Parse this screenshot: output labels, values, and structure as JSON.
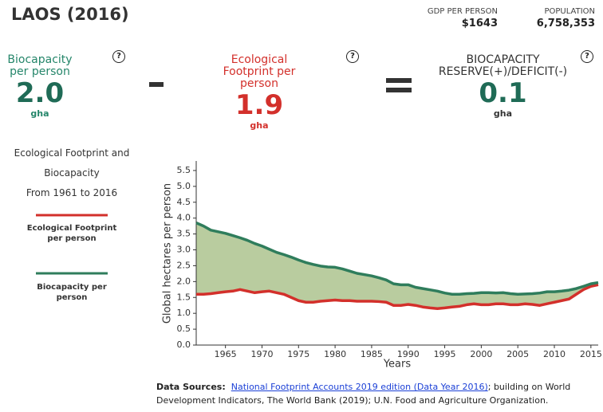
{
  "header": {
    "title": "LAOS (2016)",
    "gdp": {
      "label": "GDP PER PERSON",
      "value": "$1643"
    },
    "population": {
      "label": "POPULATION",
      "value": "6,758,353"
    },
    "help": "?",
    "panels": [
      {
        "label": "Biocapacity per person",
        "value": "2.0",
        "unit": "gha"
      },
      {
        "label": "Ecological Footprint per person",
        "value": "1.9",
        "unit": "gha"
      },
      {
        "label": "BIOCAPACITY RESERVE(+)/DEFICIT(-)",
        "value": "0.1",
        "unit": "gha"
      }
    ]
  },
  "sidebar": {
    "lines": [
      "Ecological Footprint and",
      "Biocapacity",
      "From 1961 to 2016"
    ]
  },
  "chart_data": {
    "type": "line",
    "x": [
      1961,
      1962,
      1963,
      1964,
      1965,
      1966,
      1967,
      1968,
      1969,
      1970,
      1971,
      1972,
      1973,
      1974,
      1975,
      1976,
      1977,
      1978,
      1979,
      1980,
      1981,
      1982,
      1983,
      1984,
      1985,
      1986,
      1987,
      1988,
      1989,
      1990,
      1991,
      1992,
      1993,
      1994,
      1995,
      1996,
      1997,
      1998,
      1999,
      2000,
      2001,
      2002,
      2003,
      2004,
      2005,
      2006,
      2007,
      2008,
      2009,
      2010,
      2011,
      2012,
      2013,
      2014,
      2015,
      2016
    ],
    "series": [
      {
        "name": "Ecological Footprint per person",
        "color": "#d3302b",
        "values": [
          1.6,
          1.6,
          1.62,
          1.65,
          1.68,
          1.7,
          1.75,
          1.7,
          1.65,
          1.68,
          1.7,
          1.65,
          1.6,
          1.5,
          1.4,
          1.35,
          1.35,
          1.38,
          1.4,
          1.42,
          1.4,
          1.4,
          1.38,
          1.38,
          1.38,
          1.37,
          1.35,
          1.25,
          1.25,
          1.28,
          1.25,
          1.2,
          1.17,
          1.15,
          1.17,
          1.2,
          1.22,
          1.27,
          1.3,
          1.27,
          1.27,
          1.3,
          1.3,
          1.27,
          1.27,
          1.3,
          1.28,
          1.25,
          1.3,
          1.35,
          1.4,
          1.45,
          1.6,
          1.75,
          1.85,
          1.9
        ]
      },
      {
        "name": "Biocapacity per person",
        "color": "#2f7d5c",
        "values": [
          3.85,
          3.75,
          3.62,
          3.57,
          3.52,
          3.45,
          3.38,
          3.3,
          3.2,
          3.12,
          3.02,
          2.92,
          2.85,
          2.77,
          2.68,
          2.6,
          2.54,
          2.49,
          2.46,
          2.45,
          2.4,
          2.33,
          2.26,
          2.22,
          2.18,
          2.12,
          2.05,
          1.93,
          1.9,
          1.9,
          1.82,
          1.78,
          1.74,
          1.7,
          1.64,
          1.6,
          1.6,
          1.62,
          1.63,
          1.65,
          1.65,
          1.64,
          1.65,
          1.62,
          1.6,
          1.61,
          1.62,
          1.64,
          1.68,
          1.68,
          1.7,
          1.73,
          1.78,
          1.85,
          1.93,
          1.97
        ]
      }
    ],
    "fill_color": "#b9cc9f",
    "xlabel": "Years",
    "ylabel": "Global hectares per person",
    "xlim": [
      1961,
      2016
    ],
    "ylim": [
      0,
      5.8
    ],
    "xticks": [
      1965,
      1970,
      1975,
      1980,
      1985,
      1990,
      1995,
      2000,
      2005,
      2010,
      2015
    ],
    "yticks": [
      {
        "value": 0,
        "label": "0.0"
      },
      {
        "value": 0.5,
        "label": "0.5"
      },
      {
        "value": 1,
        "label": "1.0"
      },
      {
        "value": 1.5,
        "label": "1.5"
      },
      {
        "value": 2,
        "label": "2.0"
      },
      {
        "value": 2.5,
        "label": "2.5"
      },
      {
        "value": 3,
        "label": "3.0"
      },
      {
        "value": 3.5,
        "label": "3.5"
      },
      {
        "value": 4,
        "label": "4.0"
      },
      {
        "value": 4.5,
        "label": "4.5"
      },
      {
        "value": 5,
        "label": "5.0"
      },
      {
        "value": 5.5,
        "label": "5.5"
      }
    ]
  },
  "footer": {
    "label": "Data Sources:",
    "link": "National Footprint Accounts 2019 edition (Data Year 2016)",
    "text": "; building on World Development Indicators, The World Bank (2019); U.N. Food and Agriculture Organization."
  }
}
